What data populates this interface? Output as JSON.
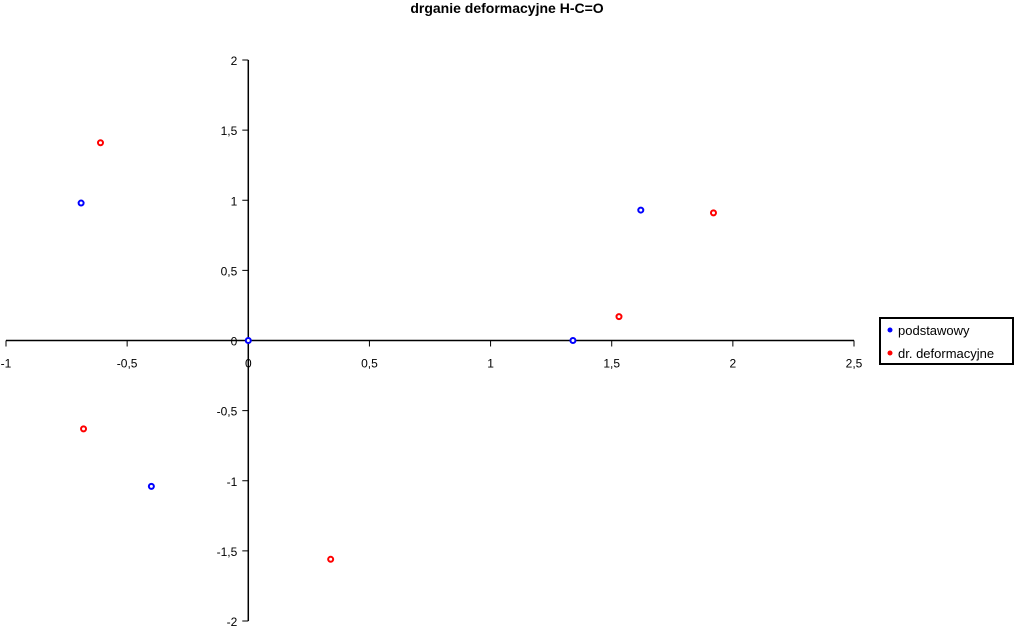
{
  "chart_data": {
    "type": "scatter",
    "title": "drganie deformacyjne H-C=O",
    "xlabel": "",
    "ylabel": "",
    "xlim": [
      -1,
      2.5
    ],
    "ylim": [
      -2,
      2
    ],
    "xticks": [
      -1,
      -0.5,
      0,
      0.5,
      1,
      1.5,
      2,
      2.5
    ],
    "xtick_labels": [
      "-1",
      "-0,5",
      "0",
      "0,5",
      "1",
      "1,5",
      "2",
      "2,5"
    ],
    "yticks": [
      -2,
      -1.5,
      -1,
      -0.5,
      0,
      0.5,
      1,
      1.5,
      2
    ],
    "ytick_labels": [
      "-2",
      "-1,5",
      "-1",
      "-0,5",
      "0",
      "0,5",
      "1",
      "1,5",
      "2"
    ],
    "grid": false,
    "legend_position": "right",
    "series": [
      {
        "name": "podstawowy",
        "color": "#0000ff",
        "points": [
          [
            -0.69,
            0.98
          ],
          [
            0,
            0
          ],
          [
            1.34,
            0
          ],
          [
            1.62,
            0.93
          ],
          [
            -0.4,
            -1.04
          ]
        ]
      },
      {
        "name": "dr. deformacyjne",
        "color": "#ff0000",
        "points": [
          [
            -0.61,
            1.41
          ],
          [
            1.92,
            0.91
          ],
          [
            1.53,
            0.17
          ],
          [
            -0.68,
            -0.63
          ],
          [
            0.34,
            -1.56
          ]
        ]
      }
    ]
  }
}
